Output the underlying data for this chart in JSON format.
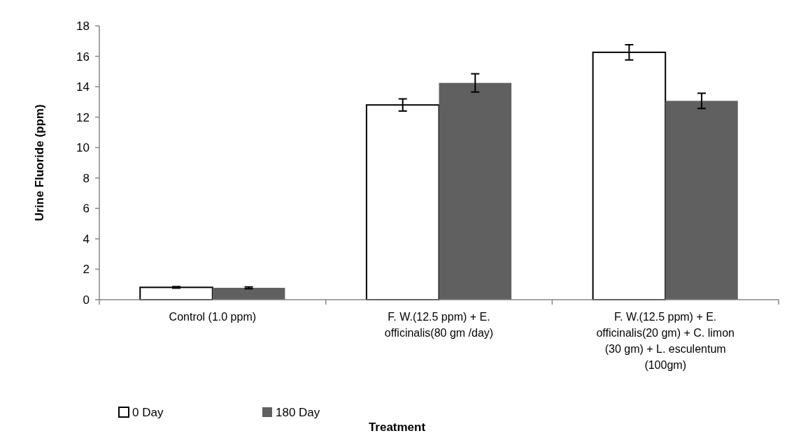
{
  "chart_data": {
    "type": "bar",
    "xlabel": "Treatment",
    "ylabel": "Urine Fluoride (ppm)",
    "categories": [
      "Control (1.0 ppm)",
      "F. W.(12.5 ppm) + E. officinalis(80 gm /day)",
      "F. W.(12.5 ppm) + E. officinalis(20 gm) + C. limon (30 gm) + L. esculentum (100gm)"
    ],
    "series": [
      {
        "name": "0 Day",
        "color": "#ffffff",
        "values": [
          0.81,
          12.8,
          16.26
        ],
        "errors": [
          0.05,
          0.4,
          0.5
        ]
      },
      {
        "name": "180 Day",
        "color": "#606060",
        "values": [
          0.78,
          14.25,
          13.07
        ],
        "errors": [
          0.06,
          0.6,
          0.5
        ]
      }
    ],
    "ylim": [
      0,
      18
    ],
    "yticks": [
      0,
      2,
      4,
      6,
      8,
      10,
      12,
      14,
      16,
      18
    ],
    "grid": false,
    "legend": "bottom"
  }
}
